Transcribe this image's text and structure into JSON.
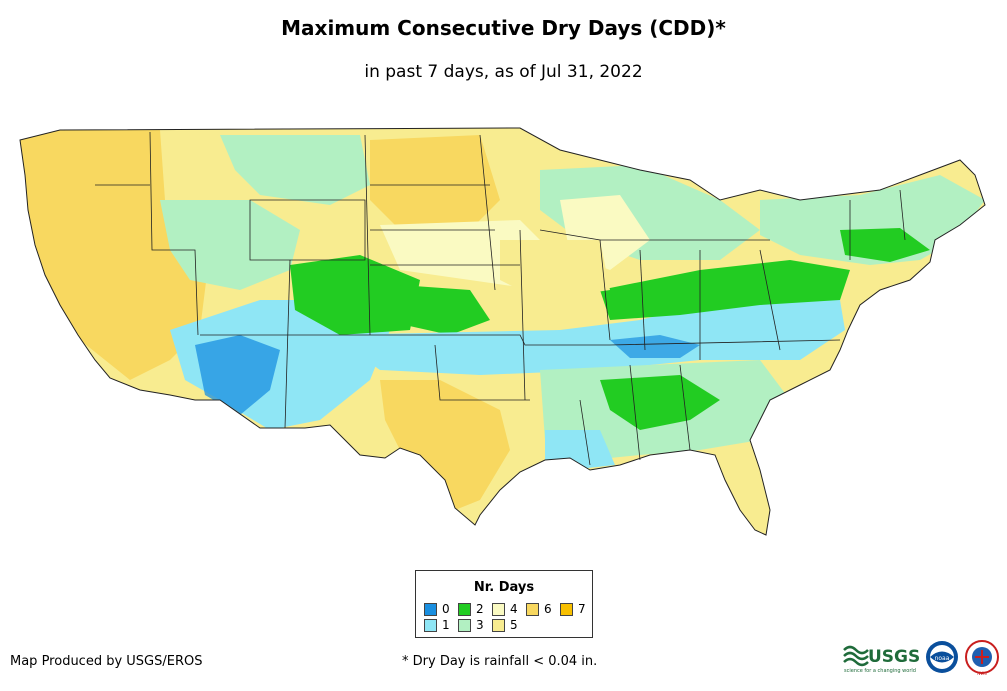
{
  "title": "Maximum Consecutive Dry Days (CDD)*",
  "subtitle": "in past 7 days, as of Jul 31, 2022",
  "legend": {
    "title": "Nr. Days",
    "items": [
      {
        "label": "0",
        "color": "#1a8fe0"
      },
      {
        "label": "1",
        "color": "#8fe6f5"
      },
      {
        "label": "2",
        "color": "#22cc22"
      },
      {
        "label": "3",
        "color": "#b2f0c2"
      },
      {
        "label": "4",
        "color": "#fafac2"
      },
      {
        "label": "5",
        "color": "#f8ec90"
      },
      {
        "label": "6",
        "color": "#f8d860"
      },
      {
        "label": "7",
        "color": "#f8c000"
      }
    ]
  },
  "footer": {
    "credit": "Map Produced by USGS/EROS",
    "note": "* Dry Day is rainfall < 0.04 in."
  },
  "logos": {
    "usgs_text": "USGS",
    "usgs_tagline": "science for a changing world",
    "noaa_text": "noaa",
    "nws_text": "NWS"
  }
}
